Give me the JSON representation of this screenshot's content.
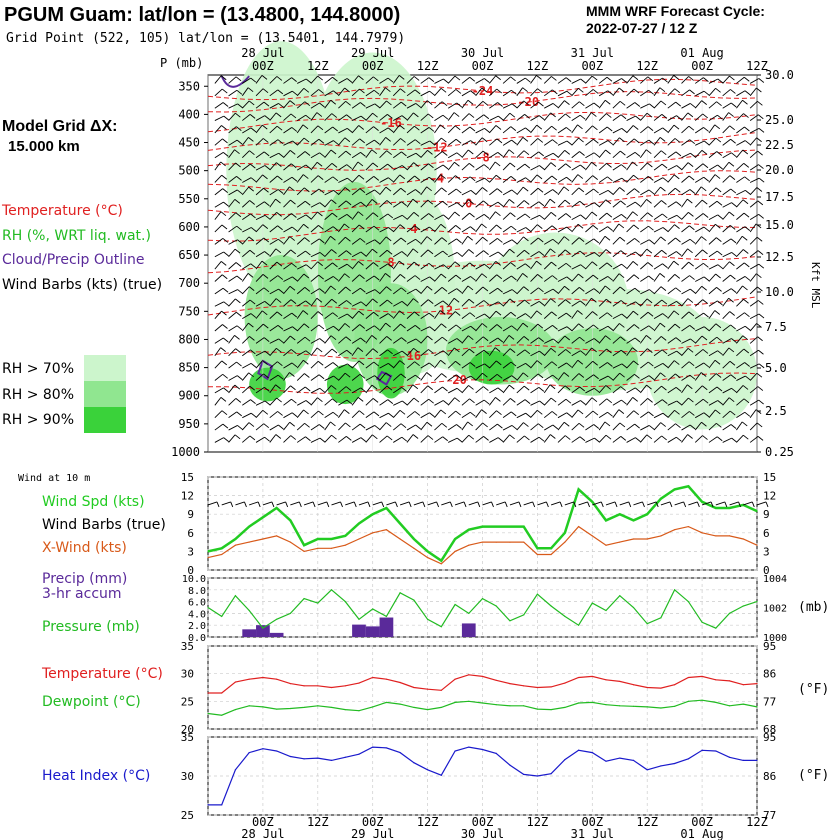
{
  "header": {
    "station_title": "PGUM Guam:  lat/lon = (13.4800, 144.8000)",
    "grid_point": "Grid Point (522, 105) lat/lon = (13.5401, 144.7979)",
    "cycle_label": "MMM WRF Forecast Cycle:",
    "cycle_value": "2022-07-27 / 12  Z",
    "model_grid_label": "Model Grid ΔX:",
    "model_grid_value": "15.000 km"
  },
  "legend": {
    "temperature": {
      "text": "Temperature (°C)",
      "color": "#e02020"
    },
    "rh": {
      "text": "RH (%, WRT liq. wat.)",
      "color": "#22bb22"
    },
    "cloud": {
      "text": "Cloud/Precip Outline",
      "color": "#5a2a9a"
    },
    "wind_barbs": {
      "text": "Wind Barbs (kts) (true)",
      "color": "#000000"
    },
    "rh_levels": [
      {
        "label": "RH > 70%",
        "color": "#ccf5cc"
      },
      {
        "label": "RH > 80%",
        "color": "#90e690"
      },
      {
        "label": "RH > 90%",
        "color": "#3ad23a"
      }
    ]
  },
  "time_axis": {
    "day_labels": [
      "28 Jul",
      "29 Jul",
      "30 Jul",
      "31 Jul",
      "01 Aug"
    ],
    "hour_labels": [
      "00Z",
      "12Z",
      "00Z",
      "12Z",
      "00Z",
      "12Z",
      "00Z",
      "12Z",
      "00Z",
      "12Z"
    ],
    "start": "2022-07-27 12Z",
    "end": "2022-08-01 12Z"
  },
  "colors": {
    "temperature": "#e02020",
    "rh_line": "#22bb22",
    "precip": "#5a2a9a",
    "heat_index": "#1a1acc",
    "xwind": "#d85a1a"
  },
  "chart_data": [
    {
      "type": "heatmap",
      "name": "cross-section",
      "y_axis_title": "P (mb)",
      "y_ticks_mb": [
        350,
        400,
        450,
        500,
        550,
        600,
        650,
        700,
        750,
        800,
        850,
        900,
        950,
        1000
      ],
      "ylim_mb": [
        1000,
        330
      ],
      "right_axis_title": "Kft MSL",
      "right_ticks": [
        "30.0",
        "25.0",
        "22.5",
        "20.0",
        "17.5",
        "15.0",
        "12.5",
        "10.0",
        "7.5",
        "5.0",
        "2.5",
        "0.25"
      ],
      "temperature_contours_c": [
        {
          "value": -24,
          "p_mb": 355
        },
        {
          "value": -20,
          "p_mb": 375
        },
        {
          "value": -16,
          "p_mb": 410
        },
        {
          "value": -12,
          "p_mb": 450
        },
        {
          "value": -8,
          "p_mb": 485
        },
        {
          "value": -4,
          "p_mb": 520
        },
        {
          "value": 0,
          "p_mb": 560
        },
        {
          "value": 4,
          "p_mb": 605
        },
        {
          "value": 8,
          "p_mb": 660
        },
        {
          "value": 12,
          "p_mb": 740
        },
        {
          "value": 16,
          "p_mb": 820
        },
        {
          "value": 20,
          "p_mb": 880
        }
      ]
    },
    {
      "type": "line",
      "name": "wind",
      "title": "Wind at 10 m",
      "ylim": [
        0,
        15
      ],
      "yticks": [
        0,
        3,
        6,
        9,
        12,
        15
      ],
      "x_hours": [
        0,
        3,
        6,
        9,
        12,
        15,
        18,
        21,
        24,
        27,
        30,
        33,
        36,
        39,
        42,
        45,
        48,
        51,
        54,
        57,
        60,
        63,
        66,
        69,
        72,
        75,
        78,
        81,
        84,
        87,
        90,
        93,
        96,
        99,
        102,
        105,
        108,
        111,
        114,
        117,
        120
      ],
      "series": [
        {
          "name": "Wind Spd (kts)",
          "color": "#22cc22",
          "values": [
            3.0,
            3.5,
            5.0,
            7.0,
            8.5,
            10.0,
            8.0,
            4.0,
            5.0,
            5.0,
            5.5,
            7.5,
            9.0,
            10.0,
            7.5,
            5.0,
            3.0,
            1.5,
            5.0,
            6.5,
            7.0,
            7.0,
            7.0,
            7.0,
            3.5,
            3.5,
            6.0,
            13.0,
            11.0,
            8.0,
            9.0,
            8.0,
            9.0,
            11.5,
            13.0,
            13.5,
            11.0,
            10.0,
            10.0,
            10.5,
            9.5
          ]
        },
        {
          "name": "X-Wind (kts)",
          "color": "#d85a1a",
          "values": [
            2.0,
            2.5,
            4.0,
            4.5,
            5.0,
            5.5,
            4.5,
            3.0,
            3.5,
            3.5,
            4.0,
            5.0,
            6.0,
            6.5,
            5.0,
            3.5,
            2.0,
            1.0,
            3.0,
            4.0,
            4.5,
            4.5,
            4.5,
            4.5,
            2.5,
            2.5,
            4.5,
            7.0,
            5.5,
            4.0,
            4.5,
            5.0,
            5.0,
            5.5,
            6.5,
            7.0,
            6.0,
            5.5,
            5.5,
            5.0,
            4.0
          ]
        }
      ],
      "legend_extra": "Wind Barbs (true)"
    },
    {
      "type": "bar",
      "name": "precip-pressure",
      "left_axis": {
        "title": "Precip (mm) 3-hr accum",
        "ylim": [
          0,
          10
        ],
        "ticks": [
          "0.0",
          "2.0",
          "4.0",
          "6.0",
          "8.0",
          "10.0"
        ]
      },
      "right_axis": {
        "title": "(mb)",
        "ylim": [
          1000,
          1004
        ],
        "ticks": [
          "1000",
          "1002",
          "1004"
        ]
      },
      "precip_bars": [
        {
          "x_hours": 9,
          "value": 1.3
        },
        {
          "x_hours": 12,
          "value": 2.0
        },
        {
          "x_hours": 15,
          "value": 0.7
        },
        {
          "x_hours": 33,
          "value": 2.1
        },
        {
          "x_hours": 36,
          "value": 1.8
        },
        {
          "x_hours": 39,
          "value": 3.3
        },
        {
          "x_hours": 57,
          "value": 2.3
        }
      ],
      "pressure_series": {
        "name": "Pressure (mb)",
        "color": "#22bb22",
        "x_hours": [
          0,
          3,
          6,
          9,
          12,
          15,
          18,
          21,
          24,
          27,
          30,
          33,
          36,
          39,
          42,
          45,
          48,
          51,
          54,
          57,
          60,
          63,
          66,
          69,
          72,
          75,
          78,
          81,
          84,
          87,
          90,
          93,
          96,
          99,
          102,
          105,
          108,
          111,
          114,
          117,
          120
        ],
        "values": [
          1002.0,
          1001.4,
          1002.8,
          1001.8,
          1000.6,
          1001.2,
          1001.6,
          1002.6,
          1002.3,
          1003.2,
          1002.4,
          1001.2,
          1001.9,
          1001.4,
          1003.0,
          1002.5,
          1001.2,
          1000.7,
          1002.2,
          1001.6,
          1002.6,
          1002.1,
          1001.1,
          1001.5,
          1002.9,
          1002.1,
          1001.4,
          1000.8,
          1002.3,
          1001.8,
          1002.8,
          1002.0,
          1000.9,
          1001.3,
          1003.2,
          1002.4,
          1001.0,
          1000.6,
          1001.6,
          1002.1,
          1002.4
        ]
      }
    },
    {
      "type": "line",
      "name": "temperature-dewpoint",
      "left_axis": {
        "ylim": [
          20,
          35
        ],
        "ticks": [
          20,
          25,
          30,
          35
        ]
      },
      "right_axis": {
        "title": "(°F)",
        "ticks": [
          68,
          77,
          86,
          95
        ]
      },
      "x_hours": [
        0,
        3,
        6,
        9,
        12,
        15,
        18,
        21,
        24,
        27,
        30,
        33,
        36,
        39,
        42,
        45,
        48,
        51,
        54,
        57,
        60,
        63,
        66,
        69,
        72,
        75,
        78,
        81,
        84,
        87,
        90,
        93,
        96,
        99,
        102,
        105,
        108,
        111,
        114,
        117,
        120
      ],
      "series": [
        {
          "name": "Temperature (°C)",
          "color": "#e02020",
          "values": [
            26.5,
            26.5,
            28.5,
            29.0,
            29.3,
            29.0,
            28.2,
            27.8,
            27.8,
            27.5,
            27.8,
            28.3,
            29.3,
            29.0,
            28.4,
            27.5,
            27.2,
            27.0,
            29.0,
            29.8,
            29.5,
            28.8,
            28.2,
            27.8,
            27.5,
            27.6,
            28.3,
            29.3,
            29.5,
            28.9,
            28.6,
            28.0,
            27.5,
            27.4,
            28.0,
            29.3,
            29.5,
            28.9,
            28.7,
            28.0,
            28.2
          ]
        },
        {
          "name": "Dewpoint (°C)",
          "color": "#22bb22",
          "values": [
            22.8,
            22.5,
            23.5,
            24.2,
            24.0,
            23.6,
            23.7,
            23.9,
            24.2,
            23.9,
            23.5,
            23.3,
            24.0,
            24.8,
            24.5,
            23.9,
            23.5,
            23.9,
            24.8,
            25.0,
            24.7,
            24.4,
            24.2,
            24.2,
            23.6,
            23.5,
            23.9,
            24.7,
            24.8,
            24.4,
            24.2,
            24.1,
            24.0,
            23.8,
            24.1,
            25.0,
            25.2,
            24.8,
            24.2,
            24.5,
            24.0
          ]
        }
      ]
    },
    {
      "type": "line",
      "name": "heat-index",
      "left_axis": {
        "ylim": [
          25,
          35
        ],
        "ticks": [
          25,
          30,
          35
        ]
      },
      "right_axis": {
        "title": "(°F)",
        "ticks": [
          77,
          86,
          95
        ]
      },
      "x_hours": [
        0,
        3,
        6,
        9,
        12,
        15,
        18,
        21,
        24,
        27,
        30,
        33,
        36,
        39,
        42,
        45,
        48,
        51,
        54,
        57,
        60,
        63,
        66,
        69,
        72,
        75,
        78,
        81,
        84,
        87,
        90,
        93,
        96,
        99,
        102,
        105,
        108,
        111,
        114,
        117,
        120
      ],
      "series": [
        {
          "name": "Heat Index (°C)",
          "color": "#1a1acc",
          "values": [
            26.3,
            26.3,
            30.8,
            33.0,
            33.5,
            33.2,
            32.5,
            32.2,
            32.3,
            32.0,
            32.4,
            32.8,
            33.7,
            33.6,
            33.0,
            31.7,
            30.8,
            30.1,
            33.2,
            33.7,
            33.4,
            32.9,
            31.4,
            30.2,
            30.0,
            30.3,
            32.1,
            33.3,
            33.0,
            31.9,
            32.3,
            32.0,
            30.8,
            31.3,
            31.6,
            32.2,
            33.3,
            33.2,
            32.4,
            32.0,
            32.0
          ]
        }
      ]
    }
  ],
  "mid_labels": {
    "wind_at_10m": "Wind at 10 m",
    "wind_spd": "Wind Spd (kts)",
    "wind_barbs": "Wind Barbs (true)",
    "xwind": "X-Wind (kts)",
    "precip": "Precip (mm)",
    "precip2": "3-hr accum",
    "pressure": "Pressure (mb)",
    "temperature": "Temperature (°C)",
    "dewpoint": "Dewpoint (°C)",
    "heat_index": "Heat Index (°C)",
    "deg_f": "(°F)",
    "mb": "(mb)",
    "p_axis": "P (mb)",
    "kft": "Kft MSL"
  }
}
